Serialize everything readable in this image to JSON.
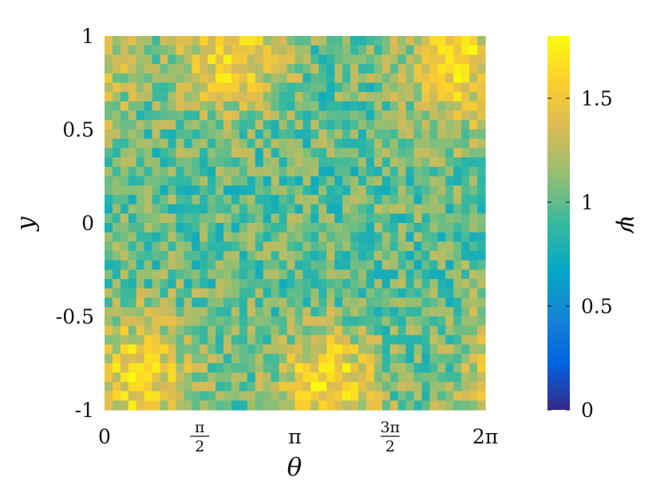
{
  "chart_data": {
    "type": "heatmap",
    "title": "",
    "xlabel": "θ",
    "ylabel": "y",
    "colorbar_label": "ψ",
    "xlim": [
      0,
      6.2832
    ],
    "ylim": [
      -1,
      1
    ],
    "clim": [
      0,
      1.8
    ],
    "colormap": "parula",
    "grid": false,
    "grid_shape": {
      "columns": 48,
      "rows": 40
    },
    "x_ticks": [
      {
        "value": 0,
        "label": "0"
      },
      {
        "value": 1.5708,
        "num": "π",
        "den": "2"
      },
      {
        "value": 3.1416,
        "label": "π"
      },
      {
        "value": 4.7124,
        "num": "3π",
        "den": "2"
      },
      {
        "value": 6.2832,
        "label": "2π"
      }
    ],
    "y_ticks": [
      {
        "value": 1,
        "label": "1"
      },
      {
        "value": 0.5,
        "label": "0.5"
      },
      {
        "value": 0,
        "label": "0"
      },
      {
        "value": -0.5,
        "label": "-0.5"
      },
      {
        "value": -1,
        "label": "-1"
      }
    ],
    "colorbar_ticks": [
      {
        "value": 0,
        "label": "0"
      },
      {
        "value": 0.5,
        "label": "0.5"
      },
      {
        "value": 1,
        "label": "1"
      },
      {
        "value": 1.5,
        "label": "1.5"
      }
    ],
    "field": {
      "baseline": 1.0,
      "noise_amplitude": 0.28,
      "blobs": [
        {
          "theta": 2.1,
          "y": 0.9,
          "amplitude": 0.6,
          "sigma_theta": 0.6,
          "sigma_y": 0.22
        },
        {
          "theta": 5.8,
          "y": 0.85,
          "amplitude": 0.62,
          "sigma_theta": 0.55,
          "sigma_y": 0.25
        },
        {
          "theta": 0.55,
          "y": -0.85,
          "amplitude": 0.6,
          "sigma_theta": 0.6,
          "sigma_y": 0.25
        },
        {
          "theta": 3.7,
          "y": -0.85,
          "amplitude": 0.65,
          "sigma_theta": 0.55,
          "sigma_y": 0.2
        }
      ]
    }
  }
}
